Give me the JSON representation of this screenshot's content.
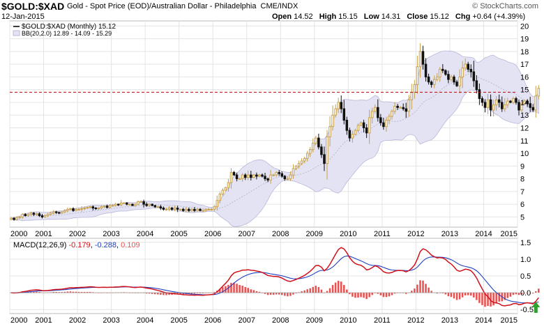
{
  "header": {
    "symbol": "$GOLD:$XAD",
    "description": "Gold - Spot Price (EOD)/Australian Dollar - Philadelphia",
    "exchange": "CME/INDX",
    "date": "12-Jan-2015",
    "brand": "© StockCharts.com",
    "open_label": "Open",
    "open": "14.52",
    "high_label": "High",
    "high": "15.15",
    "low_label": "Low",
    "low": "14.31",
    "close_label": "Close",
    "close": "15.12",
    "chg_label": "Chg",
    "chg": "+0.64 (+4.39%)"
  },
  "colors": {
    "up": "#c8a04a",
    "down": "#111111",
    "band_fill": "#e3e3f3",
    "band_line": "#b8b8d8",
    "ref_line": "#c00000",
    "macd": "#d0101a",
    "signal": "#2040c0",
    "hist": "#e85050",
    "arrow": "#2fa02f"
  },
  "chart_data": [
    {
      "type": "candlestick",
      "title": "$GOLD:$XAD Gold - Spot Price (EOD)/Australian Dollar - Philadelphia",
      "legend": [
        {
          "label": "$GOLD:$XAD (Monthly) 15.12"
        },
        {
          "label": "BB(20,2.0) 12.89 - 14.09 - 15.29"
        }
      ],
      "x_ticks": [
        "2000",
        "2001",
        "2002",
        "2003",
        "2004",
        "2005",
        "2006",
        "2007",
        "2008",
        "2009",
        "2010",
        "2011",
        "2012",
        "2013",
        "2014",
        "2015"
      ],
      "y_ticks": [
        5,
        6,
        7,
        8,
        9,
        10,
        11,
        12,
        13,
        14,
        15,
        16,
        17,
        18,
        19,
        20
      ],
      "ylim": [
        4.2,
        20.4
      ],
      "reference_line": 14.8,
      "close": [
        4.9,
        4.8,
        4.95,
        5.0,
        5.2,
        5.1,
        5.2,
        5.3,
        5.2,
        5.25,
        5.1,
        5.0,
        5.1,
        5.2,
        5.3,
        5.4,
        5.35,
        5.3,
        5.4,
        5.5,
        5.6,
        5.65,
        5.5,
        5.6,
        5.6,
        5.65,
        5.7,
        5.75,
        5.8,
        5.7,
        5.65,
        5.7,
        5.8,
        5.85,
        5.75,
        5.9,
        5.9,
        6.0,
        5.95,
        6.1,
        6.1,
        6.0,
        6.0,
        5.9,
        6.0,
        6.2,
        6.2,
        6.0,
        5.9,
        6.0,
        5.9,
        5.8,
        5.8,
        5.7,
        5.6,
        5.6,
        5.7,
        5.6,
        5.7,
        5.6,
        5.6,
        5.5,
        5.6,
        5.5,
        5.6,
        5.5,
        5.6,
        5.5,
        5.5,
        5.6,
        5.6,
        5.6,
        5.8,
        6.3,
        6.8,
        7.1,
        7.3,
        7.7,
        8.5,
        8.3,
        8.0,
        8.0,
        8.3,
        8.1,
        8.3,
        8.1,
        8.3,
        8.2,
        8.3,
        8.2,
        8.0,
        7.9,
        8.3,
        8.3,
        8.5,
        8.4,
        8.2,
        8.0,
        8.0,
        8.3,
        8.8,
        9.0,
        9.2,
        9.4,
        9.6,
        10.0,
        10.3,
        10.8,
        11.2,
        10.5,
        9.9,
        9.2,
        11.3,
        12.1,
        13.0,
        13.5,
        14.0,
        13.5,
        12.6,
        11.8,
        11.2,
        11.5,
        11.8,
        12.2,
        12.4,
        12.0,
        11.6,
        12.8,
        13.3,
        13.6,
        12.8,
        12.4,
        12.1,
        12.6,
        12.9,
        13.3,
        13.7,
        13.6,
        13.6,
        13.5,
        13.3,
        14.2,
        14.8,
        15.4,
        16.8,
        18.0,
        17.0,
        16.0,
        15.6,
        15.4,
        15.8,
        16.0,
        16.6,
        16.5,
        16.2,
        15.8,
        16.0,
        15.6,
        15.3,
        16.0,
        16.7,
        17.0,
        16.6,
        16.4,
        15.7,
        15.0,
        14.3,
        14.0,
        13.6,
        14.2,
        13.4,
        13.8,
        14.2,
        14.0,
        13.5,
        13.8,
        14.1,
        14.0,
        14.3,
        14.0,
        13.4,
        13.9,
        14.1,
        13.9,
        13.6,
        13.4,
        14.5,
        15.1
      ]
    },
    {
      "type": "macd",
      "label": "MACD(12,26,9)",
      "macd_value": "-0.179",
      "signal_value": "-0.288",
      "hist_value": "0.109",
      "y_ticks": [
        "1.5",
        "1.0",
        "0.5",
        "0.0",
        "-0.5"
      ],
      "ylim": [
        -0.62,
        1.62
      ]
    }
  ]
}
